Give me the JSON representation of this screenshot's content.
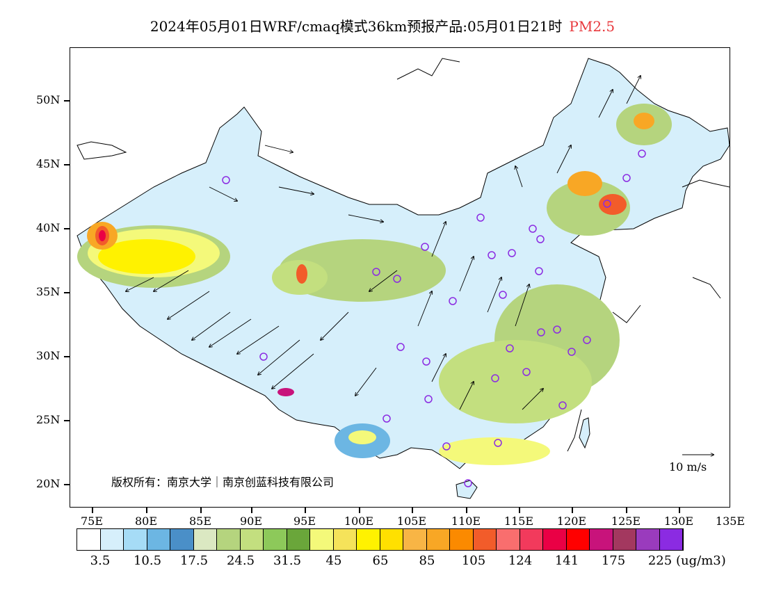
{
  "title": {
    "main": "2024年05月01日WRF/cmaq模式36km预报产品:05月01日21时",
    "pollutant": "PM2.5",
    "pollutant_color": "#e8383c"
  },
  "axes": {
    "lat_labels": [
      "50N",
      "45N",
      "40N",
      "35N",
      "30N",
      "25N",
      "20N"
    ],
    "lon_labels": [
      "75E",
      "80E",
      "85E",
      "90E",
      "95E",
      "100E",
      "105E",
      "110E",
      "115E",
      "120E",
      "125E",
      "130E",
      "135E"
    ]
  },
  "copyright": "版权所有：南京大学｜南京创蓝科技有限公司",
  "wind_reference": "10 m/s",
  "legend": {
    "colors": [
      "#ffffff",
      "#d6effb",
      "#a6dcf6",
      "#6cb6e3",
      "#4a8fc8",
      "#dbe8c2",
      "#b5d47e",
      "#c3df7f",
      "#8dc95a",
      "#6aa63a",
      "#f4f97a",
      "#f5e35a",
      "#fff200",
      "#ffe000",
      "#f8b545",
      "#f8a725",
      "#fb8a00",
      "#f25c2a",
      "#f96e6e",
      "#f23a5c",
      "#ea0045",
      "#ff0000",
      "#c8137b",
      "#a3385f",
      "#9a3bbd",
      "#8b2be2"
    ],
    "labels": [
      "3.5",
      "10.5",
      "17.5",
      "24.5",
      "31.5",
      "45",
      "65",
      "85",
      "105",
      "124",
      "141",
      "175",
      "225"
    ],
    "unit": "(ug/m3)"
  }
}
